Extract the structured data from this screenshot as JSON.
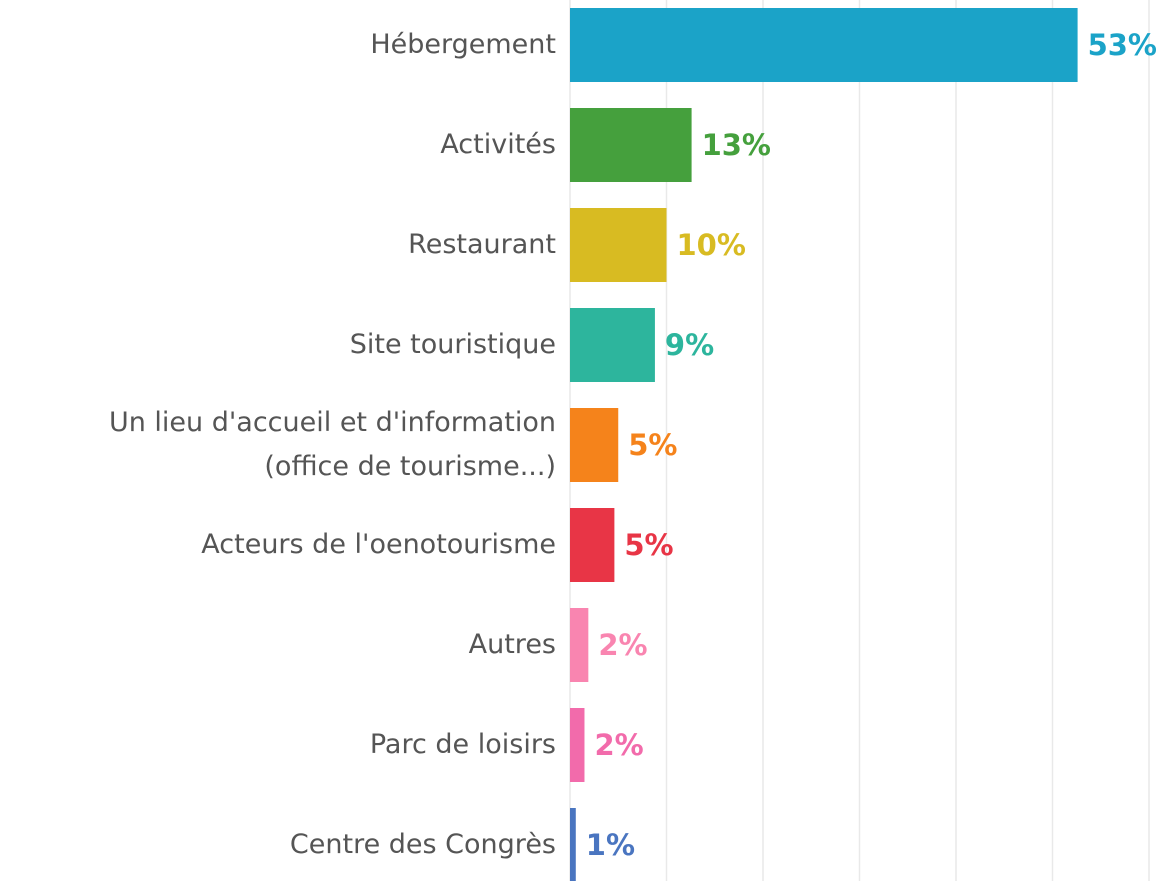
{
  "chart_data": {
    "type": "hbar",
    "categories": [
      "Hébergement",
      "Activités",
      "Restaurant",
      "Site touristique",
      "Un lieu d'accueil et d'information\n(office de tourisme...)",
      "Acteurs de l'oenotourisme",
      "Autres",
      "Parc de loisirs",
      "Centre des Congrès"
    ],
    "values": [
      52.6,
      12.6,
      10,
      8.8,
      5,
      4.6,
      1.9,
      1.5,
      0.6
    ],
    "value_labels": [
      "53%",
      "13%",
      "10%",
      "9%",
      "5%",
      "5%",
      "2%",
      "2%",
      "1%"
    ],
    "colors": [
      "#1ba3c8",
      "#45a03d",
      "#d8bb22",
      "#2db59d",
      "#f5831b",
      "#e83546",
      "#f985b0",
      "#f26bab",
      "#4a75c0"
    ],
    "xlim": [
      0,
      60
    ],
    "xticks": [
      0,
      10,
      20,
      30,
      40,
      50,
      60
    ],
    "grid": true
  }
}
